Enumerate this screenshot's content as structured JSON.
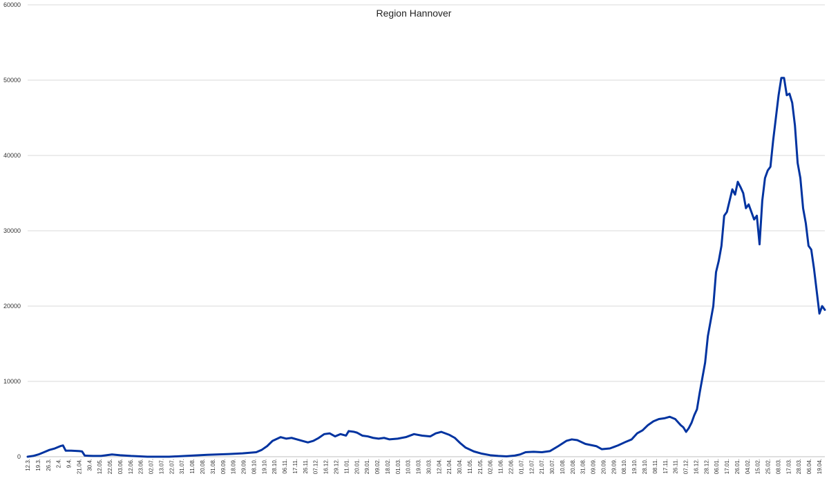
{
  "chart_data": {
    "type": "line",
    "title": "Region Hannover",
    "xlabel": "",
    "ylabel": "",
    "ylim": [
      0,
      60000
    ],
    "y_ticks": [
      "0",
      "10000",
      "20000",
      "30000",
      "40000",
      "50000",
      "60000"
    ],
    "grid": true,
    "legend": "none",
    "line_color": "#0033a0",
    "x_tick_labels": [
      "12.3.",
      "19.3.",
      "26.3.",
      "2.4.",
      "9.4.",
      "21.04.",
      "30.4.",
      "12.05.",
      "22.05.",
      "03.06.",
      "12.06.",
      "23.06.",
      "02.07.",
      "13.07.",
      "22.07.",
      "31.07.",
      "11.08.",
      "20.08.",
      "31.08.",
      "09.09.",
      "18.09.",
      "29.09.",
      "08.10.",
      "19.10.",
      "28.10.",
      "06.11.",
      "17.11.",
      "26.11.",
      "07.12.",
      "16.12.",
      "29.12.",
      "11.01.",
      "20.01.",
      "29.01.",
      "09.02.",
      "18.02.",
      "01.03.",
      "10.03.",
      "19.03.",
      "30.03.",
      "12.04.",
      "21.04.",
      "30.04.",
      "11.05.",
      "21.05.",
      "02.06.",
      "11.06.",
      "22.06.",
      "01.07.",
      "12.07.",
      "21.07.",
      "30.07.",
      "10.08.",
      "20.08.",
      "31.08.",
      "09.09.",
      "20.09.",
      "29.09.",
      "08.10.",
      "19.10.",
      "28.10.",
      "08.11.",
      "17.11.",
      "26.11.",
      "07.12.",
      "16.12.",
      "28.12.",
      "06.01.",
      "17.01.",
      "26.01.",
      "04.02.",
      "15.02.",
      "25.02.",
      "08.03.",
      "17.03.",
      "28.03.",
      "06.04.",
      "19.04."
    ],
    "series": [
      {
        "values": [
          [
            0,
            0
          ],
          [
            2,
            100
          ],
          [
            4,
            300
          ],
          [
            6,
            600
          ],
          [
            8,
            900
          ],
          [
            10,
            1100
          ],
          [
            12,
            1400
          ],
          [
            13,
            1500
          ],
          [
            14,
            800
          ],
          [
            16,
            800
          ],
          [
            19,
            750
          ],
          [
            20,
            700
          ],
          [
            21,
            150
          ],
          [
            24,
            100
          ],
          [
            27,
            100
          ],
          [
            31,
            300
          ],
          [
            34,
            200
          ],
          [
            38,
            100
          ],
          [
            44,
            0
          ],
          [
            52,
            0
          ],
          [
            58,
            100
          ],
          [
            66,
            250
          ],
          [
            74,
            350
          ],
          [
            79,
            450
          ],
          [
            84,
            600
          ],
          [
            86,
            900
          ],
          [
            88,
            1400
          ],
          [
            90,
            2100
          ],
          [
            93,
            2600
          ],
          [
            95,
            2400
          ],
          [
            97,
            2500
          ],
          [
            100,
            2200
          ],
          [
            103,
            1900
          ],
          [
            105,
            2100
          ],
          [
            107,
            2500
          ],
          [
            109,
            3000
          ],
          [
            111,
            3100
          ],
          [
            113,
            2700
          ],
          [
            115,
            3000
          ],
          [
            117,
            2800
          ],
          [
            118,
            3400
          ],
          [
            120,
            3300
          ],
          [
            121,
            3200
          ],
          [
            123,
            2800
          ],
          [
            125,
            2700
          ],
          [
            127,
            2500
          ],
          [
            129,
            2400
          ],
          [
            131,
            2500
          ],
          [
            133,
            2300
          ],
          [
            136,
            2400
          ],
          [
            139,
            2600
          ],
          [
            142,
            3000
          ],
          [
            145,
            2800
          ],
          [
            148,
            2700
          ],
          [
            150,
            3100
          ],
          [
            152,
            3300
          ],
          [
            155,
            2900
          ],
          [
            157,
            2500
          ],
          [
            159,
            1800
          ],
          [
            161,
            1200
          ],
          [
            164,
            700
          ],
          [
            167,
            400
          ],
          [
            170,
            200
          ],
          [
            173,
            100
          ],
          [
            176,
            50
          ],
          [
            179,
            150
          ],
          [
            181,
            300
          ],
          [
            183,
            600
          ],
          [
            186,
            650
          ],
          [
            189,
            600
          ],
          [
            192,
            750
          ],
          [
            195,
            1400
          ],
          [
            198,
            2100
          ],
          [
            200,
            2300
          ],
          [
            202,
            2200
          ],
          [
            205,
            1700
          ],
          [
            209,
            1400
          ],
          [
            211,
            1000
          ],
          [
            214,
            1100
          ],
          [
            217,
            1500
          ],
          [
            220,
            2000
          ],
          [
            222,
            2300
          ],
          [
            224,
            3100
          ],
          [
            226,
            3500
          ],
          [
            228,
            4200
          ],
          [
            230,
            4700
          ],
          [
            232,
            5000
          ],
          [
            234,
            5100
          ],
          [
            236,
            5300
          ],
          [
            238,
            5000
          ],
          [
            240,
            4200
          ],
          [
            241,
            3900
          ],
          [
            242,
            3300
          ],
          [
            243,
            3800
          ],
          [
            244,
            4500
          ],
          [
            245,
            5500
          ],
          [
            246,
            6300
          ],
          [
            247,
            8500
          ],
          [
            248,
            10500
          ],
          [
            249,
            12500
          ],
          [
            250,
            16000
          ],
          [
            251,
            18000
          ],
          [
            252,
            20000
          ],
          [
            253,
            24500
          ],
          [
            254,
            26000
          ],
          [
            255,
            28000
          ],
          [
            256,
            32000
          ],
          [
            257,
            32500
          ],
          [
            258,
            34000
          ],
          [
            259,
            35500
          ],
          [
            260,
            34800
          ],
          [
            261,
            36500
          ],
          [
            262,
            35800
          ],
          [
            263,
            35000
          ],
          [
            264,
            33000
          ],
          [
            265,
            33500
          ],
          [
            266,
            32500
          ],
          [
            267,
            31500
          ],
          [
            268,
            32000
          ],
          [
            269,
            28200
          ],
          [
            270,
            34000
          ],
          [
            271,
            37000
          ],
          [
            272,
            38000
          ],
          [
            273,
            38500
          ],
          [
            274,
            42000
          ],
          [
            275,
            45000
          ],
          [
            276,
            48000
          ],
          [
            277,
            50300
          ],
          [
            278,
            50300
          ],
          [
            279,
            48000
          ],
          [
            280,
            48200
          ],
          [
            281,
            47000
          ],
          [
            282,
            44000
          ],
          [
            283,
            39000
          ],
          [
            284,
            37000
          ],
          [
            285,
            33000
          ],
          [
            286,
            31000
          ],
          [
            287,
            28000
          ],
          [
            288,
            27500
          ],
          [
            289,
            25000
          ],
          [
            290,
            22000
          ],
          [
            291,
            19000
          ],
          [
            292,
            20000
          ],
          [
            293,
            19500
          ]
        ]
      }
    ]
  }
}
